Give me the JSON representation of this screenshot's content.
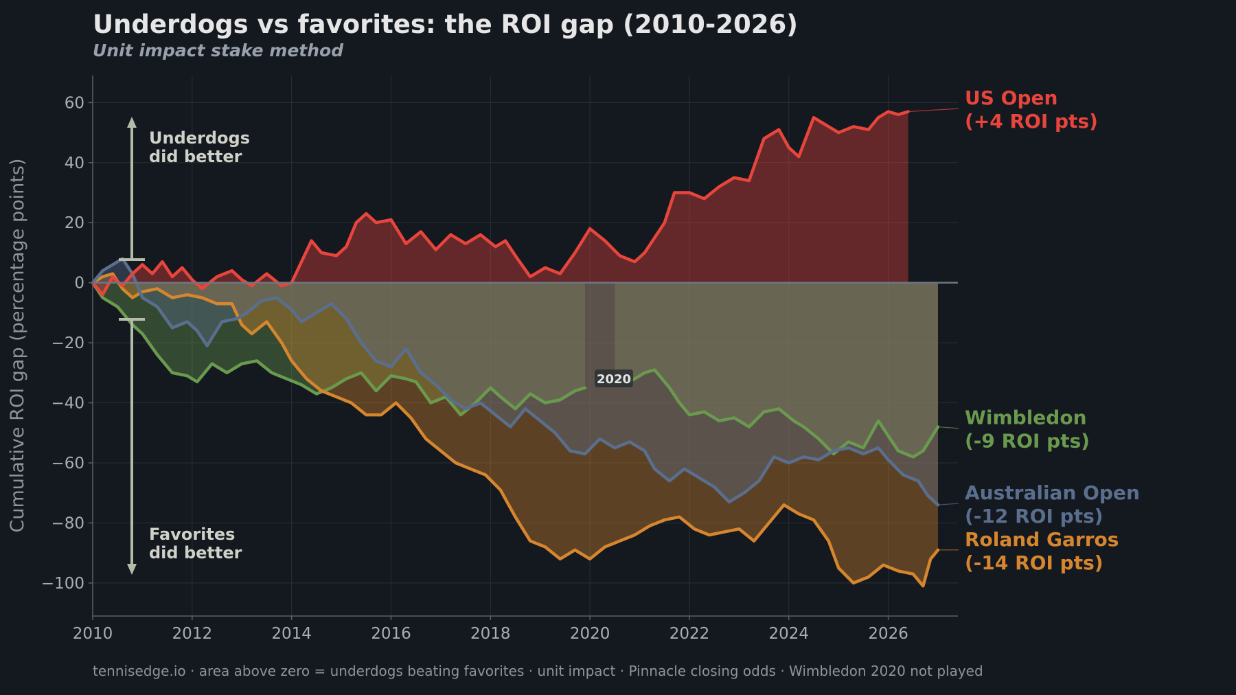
{
  "title": "Underdogs vs favorites: the ROI gap (2010-2026)",
  "subtitle": "Unit impact stake method",
  "footer": "tennisedge.io · area above zero = underdogs beating favorites · unit impact · Pinnacle closing odds · Wimbledon 2020 not played",
  "annotations": {
    "up_line1": "Underdogs",
    "up_line2": "did better",
    "down_line1": "Favorites",
    "down_line2": "did better",
    "gap_marker": "2020"
  },
  "colors": {
    "background": "#14181f",
    "us_open": "#e8453c",
    "wimbledon": "#6a9a4e",
    "australian_open": "#5a6e8e",
    "roland_garros": "#d6862e",
    "axis_text": "#a9aeb6",
    "arrow": "#b4bcaa"
  },
  "chart_data": {
    "type": "area",
    "title": "Underdogs vs favorites: the ROI gap (2010-2026)",
    "subtitle": "Unit impact stake method",
    "xlabel": "",
    "ylabel": "Cumulative ROI gap (percentage points)",
    "xlim": [
      2010,
      2027.4
    ],
    "ylim": [
      -111,
      69
    ],
    "xticks": [
      2010,
      2012,
      2014,
      2016,
      2018,
      2020,
      2022,
      2024,
      2026
    ],
    "yticks": [
      60,
      40,
      20,
      0,
      -20,
      -40,
      -60,
      -80,
      -100
    ],
    "ytick_labels": [
      "60",
      "40",
      "20",
      "0",
      "−20",
      "−40",
      "−60",
      "−80",
      "−100"
    ],
    "grid": true,
    "legend": "direct labels at right end of each line",
    "series": [
      {
        "name": "Wimbledon",
        "label_line1": "Wimbledon",
        "label_line2": "(-9 ROI pts)",
        "color": "#6a9a4e",
        "segments": [
          [
            [
              2010.0,
              0
            ],
            [
              2010.2,
              -5
            ],
            [
              2010.5,
              -8
            ],
            [
              2010.8,
              -14
            ],
            [
              2011.0,
              -17
            ],
            [
              2011.3,
              -24
            ],
            [
              2011.6,
              -30
            ],
            [
              2011.9,
              -31
            ],
            [
              2012.1,
              -33
            ],
            [
              2012.4,
              -27
            ],
            [
              2012.7,
              -30
            ],
            [
              2013.0,
              -27
            ],
            [
              2013.3,
              -26
            ],
            [
              2013.6,
              -30
            ],
            [
              2013.9,
              -32
            ],
            [
              2014.2,
              -34
            ],
            [
              2014.5,
              -37
            ],
            [
              2014.8,
              -35
            ],
            [
              2015.1,
              -32
            ],
            [
              2015.4,
              -30
            ],
            [
              2015.7,
              -36
            ],
            [
              2016.0,
              -31
            ],
            [
              2016.3,
              -32
            ],
            [
              2016.5,
              -33
            ],
            [
              2016.8,
              -40
            ],
            [
              2017.1,
              -38
            ],
            [
              2017.4,
              -44
            ],
            [
              2017.7,
              -40
            ],
            [
              2018.0,
              -35
            ],
            [
              2018.2,
              -38
            ],
            [
              2018.5,
              -42
            ],
            [
              2018.8,
              -37
            ],
            [
              2019.1,
              -40
            ],
            [
              2019.4,
              -39
            ],
            [
              2019.7,
              -36
            ],
            [
              2019.9,
              -35
            ]
          ],
          [
            [
              2020.5,
              -32
            ],
            [
              2020.8,
              -33
            ],
            [
              2021.1,
              -30
            ],
            [
              2021.3,
              -29
            ],
            [
              2021.6,
              -35
            ],
            [
              2021.8,
              -40
            ],
            [
              2022.0,
              -44
            ],
            [
              2022.3,
              -43
            ],
            [
              2022.6,
              -46
            ],
            [
              2022.9,
              -45
            ],
            [
              2023.2,
              -48
            ],
            [
              2023.5,
              -43
            ],
            [
              2023.8,
              -42
            ],
            [
              2024.1,
              -46
            ],
            [
              2024.3,
              -48
            ],
            [
              2024.6,
              -52
            ],
            [
              2024.9,
              -57
            ],
            [
              2025.2,
              -53
            ],
            [
              2025.5,
              -55
            ],
            [
              2025.8,
              -46
            ],
            [
              2026.0,
              -51
            ],
            [
              2026.2,
              -56
            ],
            [
              2026.5,
              -58
            ],
            [
              2026.7,
              -56
            ],
            [
              2026.85,
              -52
            ],
            [
              2027.0,
              -48
            ]
          ]
        ]
      },
      {
        "name": "Roland Garros",
        "label_line1": "Roland Garros",
        "label_line2": "(-14 ROI pts)",
        "color": "#d6862e",
        "segments": [
          [
            [
              2010.0,
              0
            ],
            [
              2010.2,
              2
            ],
            [
              2010.4,
              3
            ],
            [
              2010.6,
              -2
            ],
            [
              2010.8,
              -5
            ],
            [
              2011.0,
              -3
            ],
            [
              2011.3,
              -2
            ],
            [
              2011.6,
              -5
            ],
            [
              2011.9,
              -4
            ],
            [
              2012.2,
              -5
            ],
            [
              2012.5,
              -7
            ],
            [
              2012.8,
              -7
            ],
            [
              2013.0,
              -14
            ],
            [
              2013.2,
              -17
            ],
            [
              2013.5,
              -13
            ],
            [
              2013.8,
              -20
            ],
            [
              2014.0,
              -26
            ],
            [
              2014.3,
              -32
            ],
            [
              2014.6,
              -36
            ],
            [
              2014.9,
              -38
            ],
            [
              2015.2,
              -40
            ],
            [
              2015.5,
              -44
            ],
            [
              2015.8,
              -44
            ],
            [
              2016.1,
              -40
            ],
            [
              2016.4,
              -45
            ],
            [
              2016.7,
              -52
            ],
            [
              2017.0,
              -56
            ],
            [
              2017.3,
              -60
            ],
            [
              2017.6,
              -62
            ],
            [
              2017.9,
              -64
            ],
            [
              2018.2,
              -69
            ],
            [
              2018.5,
              -78
            ],
            [
              2018.8,
              -86
            ],
            [
              2019.1,
              -88
            ],
            [
              2019.4,
              -92
            ],
            [
              2019.7,
              -89
            ],
            [
              2020.0,
              -92
            ],
            [
              2020.3,
              -88
            ],
            [
              2020.6,
              -86
            ],
            [
              2020.9,
              -84
            ],
            [
              2021.2,
              -81
            ],
            [
              2021.5,
              -79
            ],
            [
              2021.8,
              -78
            ],
            [
              2022.1,
              -82
            ],
            [
              2022.4,
              -84
            ],
            [
              2022.7,
              -83
            ],
            [
              2023.0,
              -82
            ],
            [
              2023.3,
              -86
            ],
            [
              2023.6,
              -80
            ],
            [
              2023.9,
              -74
            ],
            [
              2024.2,
              -77
            ],
            [
              2024.5,
              -79
            ],
            [
              2024.8,
              -86
            ],
            [
              2025.0,
              -95
            ],
            [
              2025.3,
              -100
            ],
            [
              2025.6,
              -98
            ],
            [
              2025.9,
              -94
            ],
            [
              2026.2,
              -96
            ],
            [
              2026.5,
              -97
            ],
            [
              2026.7,
              -101
            ],
            [
              2026.85,
              -92
            ],
            [
              2027.0,
              -89
            ]
          ]
        ]
      },
      {
        "name": "Australian Open",
        "label_line1": "Australian Open",
        "label_line2": "(-12 ROI pts)",
        "color": "#5a6e8e",
        "segments": [
          [
            [
              2010.0,
              0
            ],
            [
              2010.2,
              4
            ],
            [
              2010.4,
              6
            ],
            [
              2010.6,
              8
            ],
            [
              2010.8,
              3
            ],
            [
              2011.0,
              -5
            ],
            [
              2011.3,
              -8
            ],
            [
              2011.6,
              -15
            ],
            [
              2011.9,
              -13
            ],
            [
              2012.1,
              -16
            ],
            [
              2012.3,
              -21
            ],
            [
              2012.6,
              -13
            ],
            [
              2012.9,
              -12
            ],
            [
              2013.1,
              -10
            ],
            [
              2013.4,
              -6
            ],
            [
              2013.7,
              -5
            ],
            [
              2014.0,
              -9
            ],
            [
              2014.2,
              -13
            ],
            [
              2014.5,
              -10
            ],
            [
              2014.8,
              -7
            ],
            [
              2015.1,
              -12
            ],
            [
              2015.4,
              -20
            ],
            [
              2015.7,
              -26
            ],
            [
              2016.0,
              -28
            ],
            [
              2016.3,
              -22
            ],
            [
              2016.6,
              -30
            ],
            [
              2016.9,
              -34
            ],
            [
              2017.2,
              -39
            ],
            [
              2017.5,
              -42
            ],
            [
              2017.8,
              -40
            ],
            [
              2018.1,
              -44
            ],
            [
              2018.4,
              -48
            ],
            [
              2018.7,
              -42
            ],
            [
              2019.0,
              -46
            ],
            [
              2019.3,
              -50
            ],
            [
              2019.6,
              -56
            ],
            [
              2019.9,
              -57
            ],
            [
              2020.2,
              -52
            ],
            [
              2020.5,
              -55
            ],
            [
              2020.8,
              -53
            ],
            [
              2021.1,
              -56
            ],
            [
              2021.3,
              -62
            ],
            [
              2021.6,
              -66
            ],
            [
              2021.9,
              -62
            ],
            [
              2022.2,
              -65
            ],
            [
              2022.5,
              -68
            ],
            [
              2022.8,
              -73
            ],
            [
              2023.1,
              -70
            ],
            [
              2023.4,
              -66
            ],
            [
              2023.7,
              -58
            ],
            [
              2024.0,
              -60
            ],
            [
              2024.3,
              -58
            ],
            [
              2024.6,
              -59
            ],
            [
              2024.9,
              -56
            ],
            [
              2025.2,
              -55
            ],
            [
              2025.5,
              -57
            ],
            [
              2025.8,
              -55
            ],
            [
              2026.0,
              -59
            ],
            [
              2026.3,
              -64
            ],
            [
              2026.6,
              -66
            ],
            [
              2026.8,
              -71
            ],
            [
              2027.0,
              -74
            ]
          ]
        ]
      },
      {
        "name": "US Open",
        "label_line1": "US Open",
        "label_line2": "(+4 ROI pts)",
        "color": "#e8453c",
        "segments": [
          [
            [
              2010.0,
              0
            ],
            [
              2010.2,
              -4
            ],
            [
              2010.4,
              2
            ],
            [
              2010.6,
              -1
            ],
            [
              2010.8,
              3
            ],
            [
              2011.0,
              6
            ],
            [
              2011.2,
              3
            ],
            [
              2011.4,
              7
            ],
            [
              2011.6,
              2
            ],
            [
              2011.8,
              5
            ],
            [
              2012.0,
              1
            ],
            [
              2012.2,
              -2
            ],
            [
              2012.5,
              2
            ],
            [
              2012.8,
              4
            ],
            [
              2013.0,
              1
            ],
            [
              2013.2,
              -1
            ],
            [
              2013.5,
              3
            ],
            [
              2013.8,
              -1
            ],
            [
              2014.0,
              0
            ],
            [
              2014.2,
              7
            ],
            [
              2014.4,
              14
            ],
            [
              2014.6,
              10
            ],
            [
              2014.9,
              9
            ],
            [
              2015.1,
              12
            ],
            [
              2015.3,
              20
            ],
            [
              2015.5,
              23
            ],
            [
              2015.7,
              20
            ],
            [
              2016.0,
              21
            ],
            [
              2016.3,
              13
            ],
            [
              2016.6,
              17
            ],
            [
              2016.9,
              11
            ],
            [
              2017.2,
              16
            ],
            [
              2017.5,
              13
            ],
            [
              2017.8,
              16
            ],
            [
              2018.1,
              12
            ],
            [
              2018.3,
              14
            ],
            [
              2018.5,
              9
            ],
            [
              2018.8,
              2
            ],
            [
              2019.1,
              5
            ],
            [
              2019.4,
              3
            ],
            [
              2019.7,
              10
            ],
            [
              2020.0,
              18
            ],
            [
              2020.3,
              14
            ],
            [
              2020.6,
              9
            ],
            [
              2020.9,
              7
            ],
            [
              2021.1,
              10
            ],
            [
              2021.3,
              15
            ],
            [
              2021.5,
              20
            ],
            [
              2021.7,
              30
            ],
            [
              2022.0,
              30
            ],
            [
              2022.3,
              28
            ],
            [
              2022.6,
              32
            ],
            [
              2022.9,
              35
            ],
            [
              2023.2,
              34
            ],
            [
              2023.5,
              48
            ],
            [
              2023.8,
              51
            ],
            [
              2024.0,
              45
            ],
            [
              2024.2,
              42
            ],
            [
              2024.5,
              55
            ],
            [
              2024.8,
              52
            ],
            [
              2025.0,
              50
            ],
            [
              2025.3,
              52
            ],
            [
              2025.6,
              51
            ],
            [
              2025.8,
              55
            ],
            [
              2026.0,
              57
            ],
            [
              2026.2,
              56
            ],
            [
              2026.4,
              57
            ]
          ]
        ]
      }
    ]
  }
}
